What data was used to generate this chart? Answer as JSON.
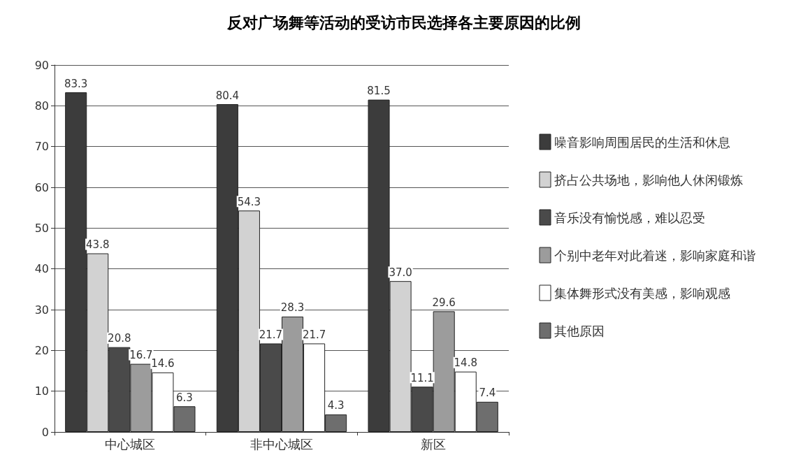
{
  "chart_data": {
    "type": "bar",
    "title": "反对广场舞等活动的受访市民选择各主要原因的比例",
    "categories": [
      "中心城区",
      "非中心城区",
      "新区"
    ],
    "series": [
      {
        "name": "噪音影响周围居民的生活和休息",
        "color": "#3c3c3c",
        "values": [
          83.3,
          80.4,
          81.5
        ]
      },
      {
        "name": "挤占公共场地，影响他人休闲锻炼",
        "color": "#d2d2d2",
        "values": [
          43.8,
          54.3,
          37.0
        ]
      },
      {
        "name": "音乐没有愉悦感，难以忍受",
        "color": "#4a4a4a",
        "values": [
          20.8,
          21.7,
          11.1
        ]
      },
      {
        "name": "个别中老年对此着迷，影响家庭和谐",
        "color": "#9c9c9c",
        "values": [
          16.7,
          28.3,
          29.6
        ]
      },
      {
        "name": "集体舞形式没有美感，影响观感",
        "color": "#ffffff",
        "values": [
          14.6,
          21.7,
          14.8
        ]
      },
      {
        "name": "其他原因",
        "color": "#6e6e6e",
        "values": [
          6.3,
          4.3,
          7.4
        ]
      }
    ],
    "value_labels": [
      [
        "83.3",
        "80.4",
        "81.5"
      ],
      [
        "43.8",
        "54.3",
        "37.0"
      ],
      [
        "20.8",
        "21.7",
        "11.1"
      ],
      [
        "16.7",
        "28.3",
        "29.6"
      ],
      [
        "14.6",
        "21.7",
        "14.8"
      ],
      [
        "6.3",
        "4.3",
        "7.4"
      ]
    ],
    "ylim": [
      0,
      90
    ],
    "yticks": [
      0,
      10,
      20,
      30,
      40,
      50,
      60,
      70,
      80,
      90
    ],
    "grid": "y",
    "legend": "right"
  }
}
